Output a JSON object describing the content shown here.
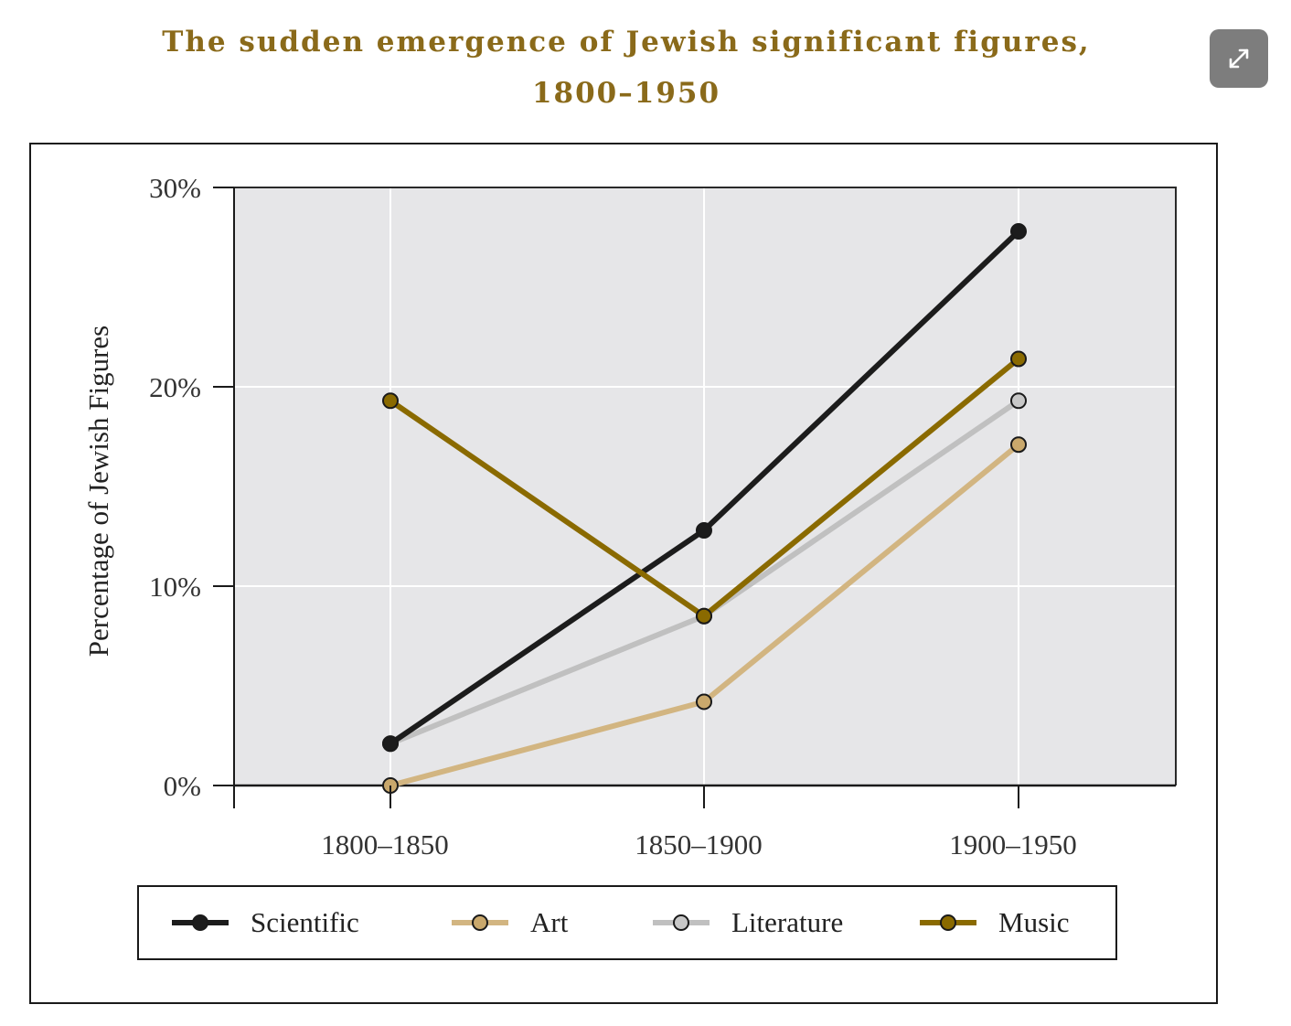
{
  "title_line1": "The sudden emergence of Jewish significant figures,",
  "title_line2": "1800–1950",
  "expand_icon": "expand-icon",
  "chart_data": {
    "type": "line",
    "title": "The sudden emergence of Jewish significant figures, 1800–1950",
    "xlabel": "",
    "ylabel": "Percentage of Jewish Figures",
    "categories": [
      "1800–1850",
      "1850–1900",
      "1900–1950"
    ],
    "ylim": [
      0,
      30
    ],
    "yticks": [
      0,
      10,
      20,
      30
    ],
    "ytick_labels": [
      "0%",
      "10%",
      "20%",
      "30%"
    ],
    "grid": true,
    "legend_position": "bottom",
    "series": [
      {
        "name": "Scientific",
        "values": [
          2.1,
          12.8,
          27.8
        ],
        "color": "#1c1c1c",
        "marker": "#1c1c1c"
      },
      {
        "name": "Art",
        "values": [
          0,
          4.2,
          17.1
        ],
        "color": "#d2b581",
        "marker": "#c9a86c"
      },
      {
        "name": "Literature",
        "values": [
          2.1,
          8.5,
          19.3
        ],
        "color": "#c0c0c0",
        "marker": "#c8c8c8"
      },
      {
        "name": "Music",
        "values": [
          19.3,
          8.5,
          21.4
        ],
        "color": "#8a6a00",
        "marker": "#8a6a00"
      }
    ]
  }
}
